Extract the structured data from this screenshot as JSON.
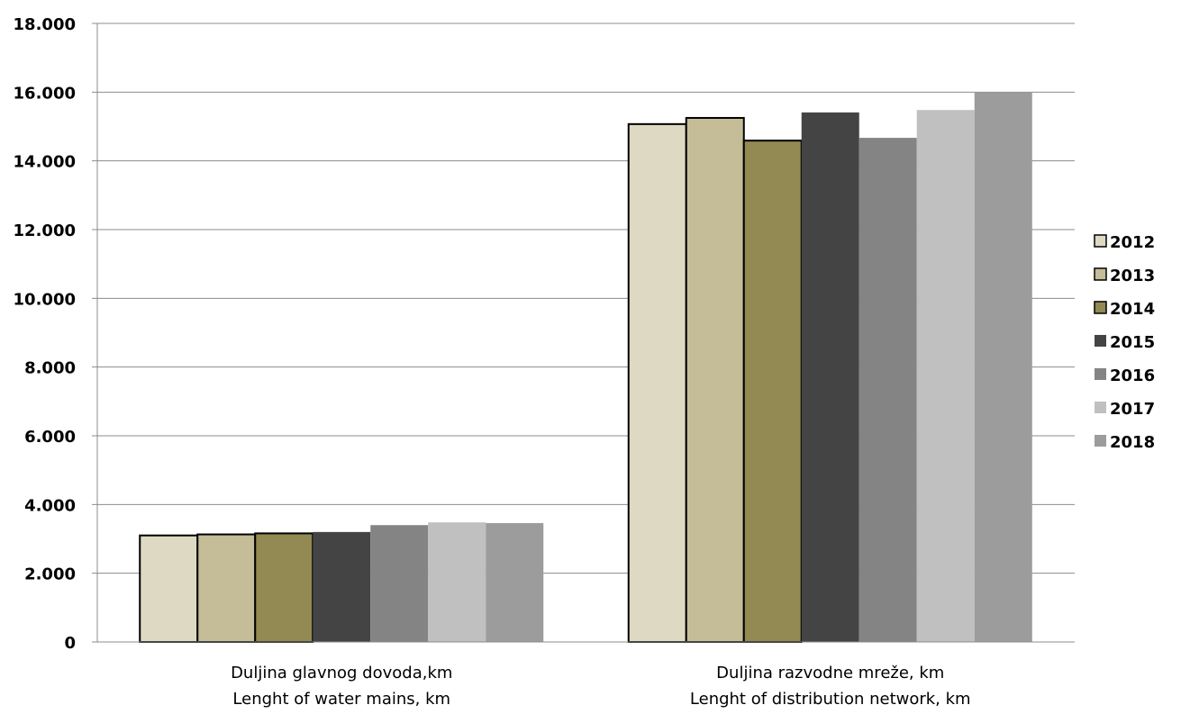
{
  "chart_data": {
    "type": "bar",
    "categories": [
      [
        "Duljina glavnog dovoda,km",
        "Lenght of water mains, km"
      ],
      [
        "Duljina razvodne mreže, km",
        "Lenght of distribution network, km"
      ]
    ],
    "series": [
      {
        "name": "2012",
        "color": "#ddd9c3",
        "outlined": true,
        "values": [
          3100,
          15070
        ]
      },
      {
        "name": "2013",
        "color": "#c4bd97",
        "outlined": true,
        "values": [
          3130,
          15250
        ]
      },
      {
        "name": "2014",
        "color": "#938953",
        "outlined": true,
        "values": [
          3160,
          14590
        ]
      },
      {
        "name": "2015",
        "color": "#444444",
        "outlined": false,
        "values": [
          3200,
          15410
        ]
      },
      {
        "name": "2016",
        "color": "#848484",
        "outlined": false,
        "values": [
          3400,
          14670
        ]
      },
      {
        "name": "2017",
        "color": "#c0c0c0",
        "outlined": false,
        "values": [
          3480,
          15480
        ]
      },
      {
        "name": "2018",
        "color": "#9c9c9c",
        "outlined": false,
        "values": [
          3460,
          16000
        ]
      }
    ],
    "y_ticks": [
      "0",
      "2.000",
      "4.000",
      "6.000",
      "8.000",
      "10.000",
      "12.000",
      "14.000",
      "16.000",
      "18.000"
    ],
    "ylim": [
      0,
      18000
    ],
    "grid": true,
    "legend_position": "right",
    "title": "",
    "xlabel": "",
    "ylabel": ""
  }
}
